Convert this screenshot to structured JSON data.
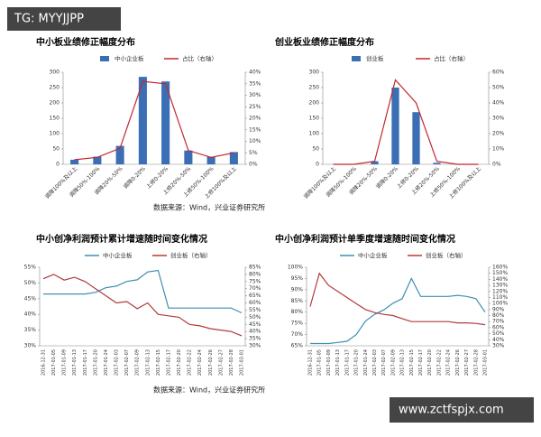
{
  "watermark_top": "TG: MYYJJPP",
  "watermark_bottom": "www.zctfspjx.com",
  "sources": [
    "数据来源：Wind，兴业证券研究所",
    "数据来源：Wind，兴业证券研究所"
  ],
  "chart_data": [
    {
      "type": "combo",
      "title": "中小板业绩修正幅度分布",
      "categories": [
        "调降100%及以上",
        "调降50%-100%",
        "调降20%-50%",
        "调降0-20%",
        "上修0-20%",
        "上修20%-50%",
        "上修50%-100%",
        "上修100%及以上"
      ],
      "series": [
        {
          "name": "中小企业板",
          "type": "bar",
          "color": "#3a6fb5",
          "values": [
            15,
            25,
            60,
            285,
            270,
            45,
            25,
            40
          ]
        },
        {
          "name": "占比（右轴）",
          "type": "line",
          "color": "#c0282e",
          "axis": "y2",
          "values": [
            2,
            3,
            7,
            36,
            35,
            6,
            3,
            5
          ]
        }
      ],
      "ylim": [
        0,
        300
      ],
      "yticks": [
        0,
        50,
        100,
        150,
        200,
        250,
        300
      ],
      "y2lim": [
        0,
        40
      ],
      "y2ticks": [
        {
          "value": 0,
          "label": "0%"
        },
        {
          "value": 5,
          "label": "5%"
        },
        {
          "value": 10,
          "label": "10%"
        },
        {
          "value": 15,
          "label": "15%"
        },
        {
          "value": 20,
          "label": "20%"
        },
        {
          "value": 25,
          "label": "25%"
        },
        {
          "value": 30,
          "label": "30%"
        },
        {
          "value": 35,
          "label": "35%"
        },
        {
          "value": 40,
          "label": "40%"
        }
      ]
    },
    {
      "type": "combo",
      "title": "创业板业绩修正幅度分布",
      "categories": [
        "调降100%及以上",
        "调降50%-100%",
        "调降20%-50%",
        "调降0-20%",
        "上修0-20%",
        "上修20%-50%",
        "上修50%-100%",
        "上修100%及以上"
      ],
      "series": [
        {
          "name": "创业板",
          "type": "bar",
          "color": "#3a6fb5",
          "values": [
            0,
            0,
            10,
            250,
            170,
            5,
            0,
            0
          ]
        },
        {
          "name": "占比（右轴）",
          "type": "line",
          "color": "#c0282e",
          "axis": "y2",
          "values": [
            0,
            0,
            2,
            55,
            40,
            2,
            0,
            0
          ]
        }
      ],
      "ylim": [
        0,
        300
      ],
      "yticks": [
        0,
        50,
        100,
        150,
        200,
        250,
        300
      ],
      "y2lim": [
        0,
        60
      ],
      "y2ticks": [
        {
          "value": 0,
          "label": "0%"
        },
        {
          "value": 10,
          "label": "10%"
        },
        {
          "value": 20,
          "label": "20%"
        },
        {
          "value": 30,
          "label": "30%"
        },
        {
          "value": 40,
          "label": "40%"
        },
        {
          "value": 50,
          "label": "50%"
        },
        {
          "value": 60,
          "label": "60%"
        }
      ]
    },
    {
      "type": "line",
      "title": "中小创净利润预计累计增速随时间变化情况",
      "categories": [
        "2016-12-31",
        "2017-01-05",
        "2017-01-09",
        "2017-01-13",
        "2017-01-17",
        "2017-01-20",
        "2017-01-24",
        "2017-02-03",
        "2017-02-07",
        "2017-02-09",
        "2017-02-13",
        "2017-02-15",
        "2017-02-17",
        "2017-02-20",
        "2017-02-22",
        "2017-02-24",
        "2017-02-26",
        "2017-02-27",
        "2017-02-28",
        "2017-03-01"
      ],
      "series": [
        {
          "name": "中小企业板",
          "color": "#3d8fb0",
          "values": [
            46.5,
            46.5,
            46.5,
            46.5,
            46.5,
            47,
            48.5,
            49,
            50.5,
            51,
            53.5,
            54,
            42,
            42,
            42,
            42,
            42,
            42,
            42,
            40.5
          ]
        },
        {
          "name": "创业板（右轴）",
          "color": "#b23a3a",
          "axis": "y2",
          "values": [
            77,
            80,
            76,
            78,
            75,
            70,
            65,
            60,
            61,
            56,
            60,
            52,
            51,
            50,
            45,
            44,
            42,
            41,
            40,
            37
          ]
        }
      ],
      "ylim": [
        30,
        55
      ],
      "yticks": [
        {
          "value": 30,
          "label": "30%"
        },
        {
          "value": 35,
          "label": "35%"
        },
        {
          "value": 40,
          "label": "40%"
        },
        {
          "value": 45,
          "label": "45%"
        },
        {
          "value": 50,
          "label": "50%"
        },
        {
          "value": 55,
          "label": "55%"
        }
      ],
      "y2lim": [
        30,
        85
      ],
      "y2ticks": [
        {
          "value": 30,
          "label": "30%"
        },
        {
          "value": 35,
          "label": "35%"
        },
        {
          "value": 40,
          "label": "40%"
        },
        {
          "value": 45,
          "label": "45%"
        },
        {
          "value": 50,
          "label": "50%"
        },
        {
          "value": 55,
          "label": "55%"
        },
        {
          "value": 60,
          "label": "60%"
        },
        {
          "value": 65,
          "label": "65%"
        },
        {
          "value": 70,
          "label": "70%"
        },
        {
          "value": 75,
          "label": "75%"
        },
        {
          "value": 80,
          "label": "80%"
        },
        {
          "value": 85,
          "label": "85%"
        }
      ]
    },
    {
      "type": "line",
      "title": "中小创净利润预计单季度增速随时间变化情况",
      "categories": [
        "2016-12-31",
        "2017-01-05",
        "2017-01-09",
        "2017-01-13",
        "2017-01-17",
        "2017-01-20",
        "2017-01-24",
        "2017-02-03",
        "2017-02-07",
        "2017-02-09",
        "2017-02-13",
        "2017-02-15",
        "2017-02-17",
        "2017-02-20",
        "2017-02-22",
        "2017-02-24",
        "2017-02-26",
        "2017-02-27",
        "2017-02-28",
        "2017-03-01"
      ],
      "series": [
        {
          "name": "中小企业板",
          "color": "#3d8fb0",
          "values": [
            66,
            66,
            66,
            66.5,
            67,
            70,
            76,
            79,
            81,
            84,
            86,
            95,
            87,
            87,
            87,
            87,
            87.5,
            87,
            86,
            80
          ]
        },
        {
          "name": "创业板（右轴）",
          "color": "#b23a3a",
          "axis": "y2",
          "values": [
            95,
            150,
            130,
            120,
            110,
            100,
            90,
            85,
            82,
            80,
            75,
            70,
            70,
            70,
            70,
            70,
            68,
            68,
            67,
            65
          ]
        }
      ],
      "ylim": [
        65,
        100
      ],
      "yticks": [
        {
          "value": 65,
          "label": "65%"
        },
        {
          "value": 70,
          "label": "70%"
        },
        {
          "value": 75,
          "label": "75%"
        },
        {
          "value": 80,
          "label": "80%"
        },
        {
          "value": 85,
          "label": "85%"
        },
        {
          "value": 90,
          "label": "90%"
        },
        {
          "value": 95,
          "label": "95%"
        },
        {
          "value": 100,
          "label": "100%"
        }
      ],
      "y2lim": [
        30,
        160
      ],
      "y2ticks": [
        {
          "value": 30,
          "label": "30%"
        },
        {
          "value": 40,
          "label": "40%"
        },
        {
          "value": 50,
          "label": "50%"
        },
        {
          "value": 60,
          "label": "60%"
        },
        {
          "value": 70,
          "label": "70%"
        },
        {
          "value": 80,
          "label": "80%"
        },
        {
          "value": 90,
          "label": "90%"
        },
        {
          "value": 100,
          "label": "100%"
        },
        {
          "value": 110,
          "label": "110%"
        },
        {
          "value": 120,
          "label": "120%"
        },
        {
          "value": 130,
          "label": "130%"
        },
        {
          "value": 140,
          "label": "140%"
        },
        {
          "value": 150,
          "label": "150%"
        },
        {
          "value": 160,
          "label": "160%"
        }
      ]
    }
  ]
}
